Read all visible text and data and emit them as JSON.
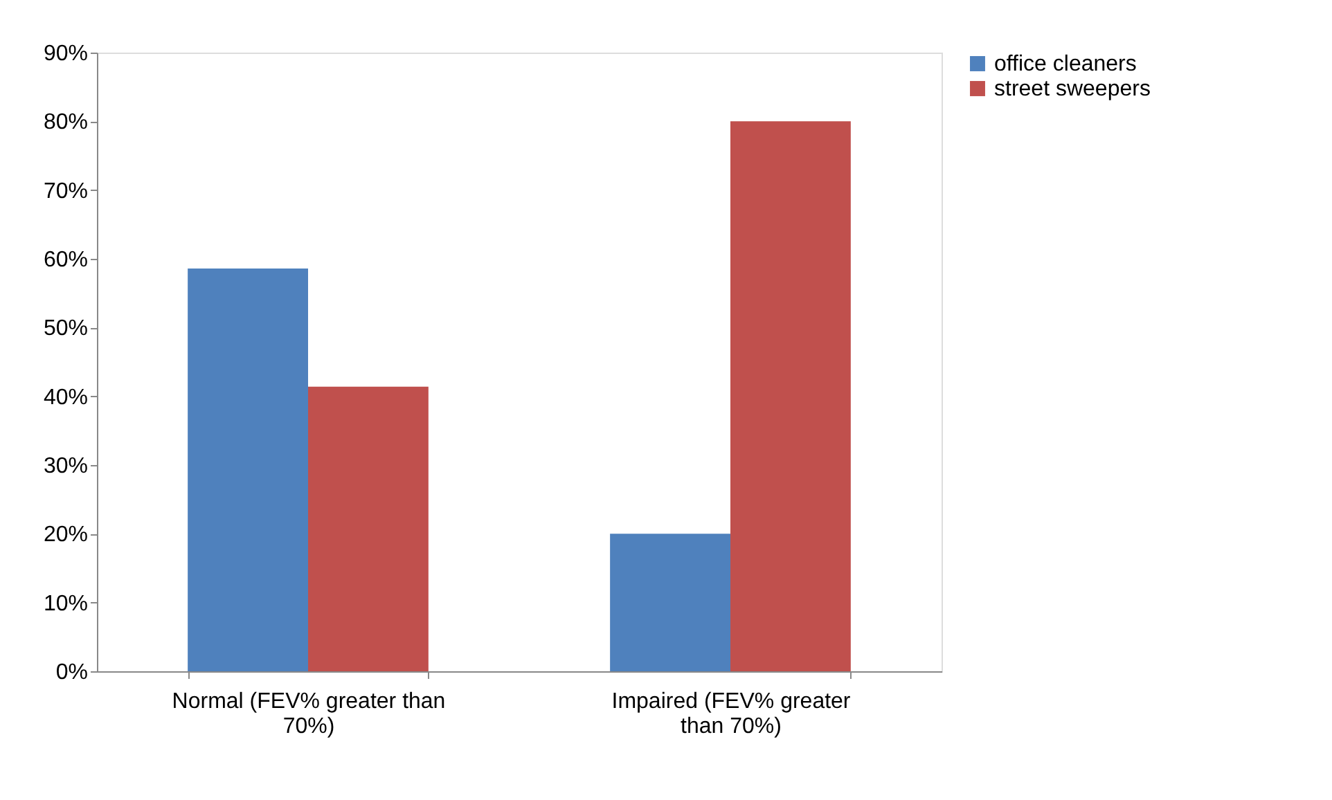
{
  "chart_data": {
    "type": "bar",
    "categories": [
      "Normal (FEV% greater than 70%)",
      "Impaired (FEV% greater than 70%)"
    ],
    "series": [
      {
        "name": "office cleaners",
        "color": "#4f81bd",
        "values": [
          58.6,
          20
        ]
      },
      {
        "name": "street sweepers",
        "color": "#c0504d",
        "values": [
          41.4,
          80
        ]
      }
    ],
    "ylim": [
      0,
      90
    ],
    "yticks": [
      {
        "value": 0,
        "label": "0%"
      },
      {
        "value": 10,
        "label": "10%"
      },
      {
        "value": 20,
        "label": "20%"
      },
      {
        "value": 30,
        "label": "30%"
      },
      {
        "value": 40,
        "label": "40%"
      },
      {
        "value": 50,
        "label": "50%"
      },
      {
        "value": 60,
        "label": "60%"
      },
      {
        "value": 70,
        "label": "70%"
      },
      {
        "value": 80,
        "label": "80%"
      },
      {
        "value": 90,
        "label": "90%"
      }
    ],
    "grid": false,
    "legend": "right"
  }
}
